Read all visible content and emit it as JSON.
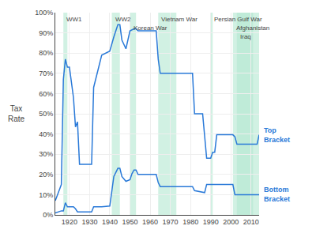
{
  "chart_data": {
    "type": "line",
    "ylabel": "Tax\nRate",
    "series": [
      {
        "name": "Top\nBracket",
        "color": "#2979d8",
        "x": [
          1913,
          1916,
          1917,
          1918,
          1919,
          1920,
          1922,
          1923,
          1924,
          1925,
          1931,
          1932,
          1936,
          1940,
          1942,
          1944,
          1945,
          1946,
          1948,
          1950,
          1952,
          1953,
          1954,
          1963,
          1964,
          1965,
          1981,
          1982,
          1986,
          1987,
          1988,
          1990,
          1991,
          1992,
          1993,
          2001,
          2002,
          2003,
          2013,
          2014
        ],
        "values": [
          7,
          15,
          67,
          77,
          73,
          73,
          58,
          43.5,
          46,
          25,
          25,
          63,
          79,
          81,
          88,
          94,
          94,
          86.45,
          82.13,
          91,
          92,
          92,
          91,
          91,
          77,
          70,
          70,
          50,
          50,
          38.5,
          28,
          28,
          31,
          31,
          39.6,
          39.6,
          38.6,
          35,
          35,
          39.6
        ]
      },
      {
        "name": "Bottom\nBracket",
        "color": "#2979d8",
        "x": [
          1913,
          1916,
          1917,
          1918,
          1919,
          1920,
          1922,
          1923,
          1924,
          1931,
          1932,
          1936,
          1940,
          1942,
          1944,
          1945,
          1946,
          1948,
          1950,
          1951,
          1952,
          1953,
          1954,
          1963,
          1964,
          1965,
          1981,
          1982,
          1986,
          1987,
          1988,
          1990,
          1992,
          1993,
          2001,
          2002,
          2003,
          2013,
          2014
        ],
        "values": [
          1,
          2,
          2,
          6,
          4,
          4,
          4,
          3,
          1.5,
          1.5,
          4,
          4,
          4.4,
          19,
          23,
          23,
          19,
          16.6,
          17.4,
          20.4,
          22.2,
          22.2,
          20,
          20,
          16,
          14,
          14,
          12,
          11,
          11,
          15,
          15,
          15,
          15,
          15,
          10,
          10,
          10,
          10
        ]
      }
    ],
    "wars": {
      "color": "#b2e8d0",
      "spans": [
        {
          "name": "WW1",
          "start": 1917,
          "end": 1919
        },
        {
          "name": "WW2",
          "start": 1941,
          "end": 1945
        },
        {
          "name": "Korean War",
          "start": 1950,
          "end": 1953
        },
        {
          "name": "Vietnam War",
          "start": 1964,
          "end": 1973
        },
        {
          "name": "Persian Gulf War",
          "start": 1990,
          "end": 1991
        },
        {
          "name": "Afghanistan",
          "start": 2001,
          "end": 2014
        },
        {
          "name": "Iraq",
          "start": 2003,
          "end": 2011
        }
      ]
    },
    "xlim": [
      1913,
      2014
    ],
    "xticks": [
      1920,
      1930,
      1940,
      1950,
      1960,
      1970,
      1980,
      1990,
      2000,
      2010
    ],
    "ylim": [
      0,
      100
    ],
    "yticks": [
      {
        "value": 0,
        "label": "0%"
      },
      {
        "value": 10,
        "label": "10%"
      },
      {
        "value": 20,
        "label": "20%"
      },
      {
        "value": 30,
        "label": "30%"
      },
      {
        "value": 40,
        "label": "40%"
      },
      {
        "value": 50,
        "label": "50%"
      },
      {
        "value": 60,
        "label": "60%"
      },
      {
        "value": 70,
        "label": "70%"
      },
      {
        "value": 80,
        "label": "80%"
      },
      {
        "value": 90,
        "label": "90%"
      },
      {
        "value": 100,
        "label": "100%"
      }
    ],
    "grid": true
  }
}
